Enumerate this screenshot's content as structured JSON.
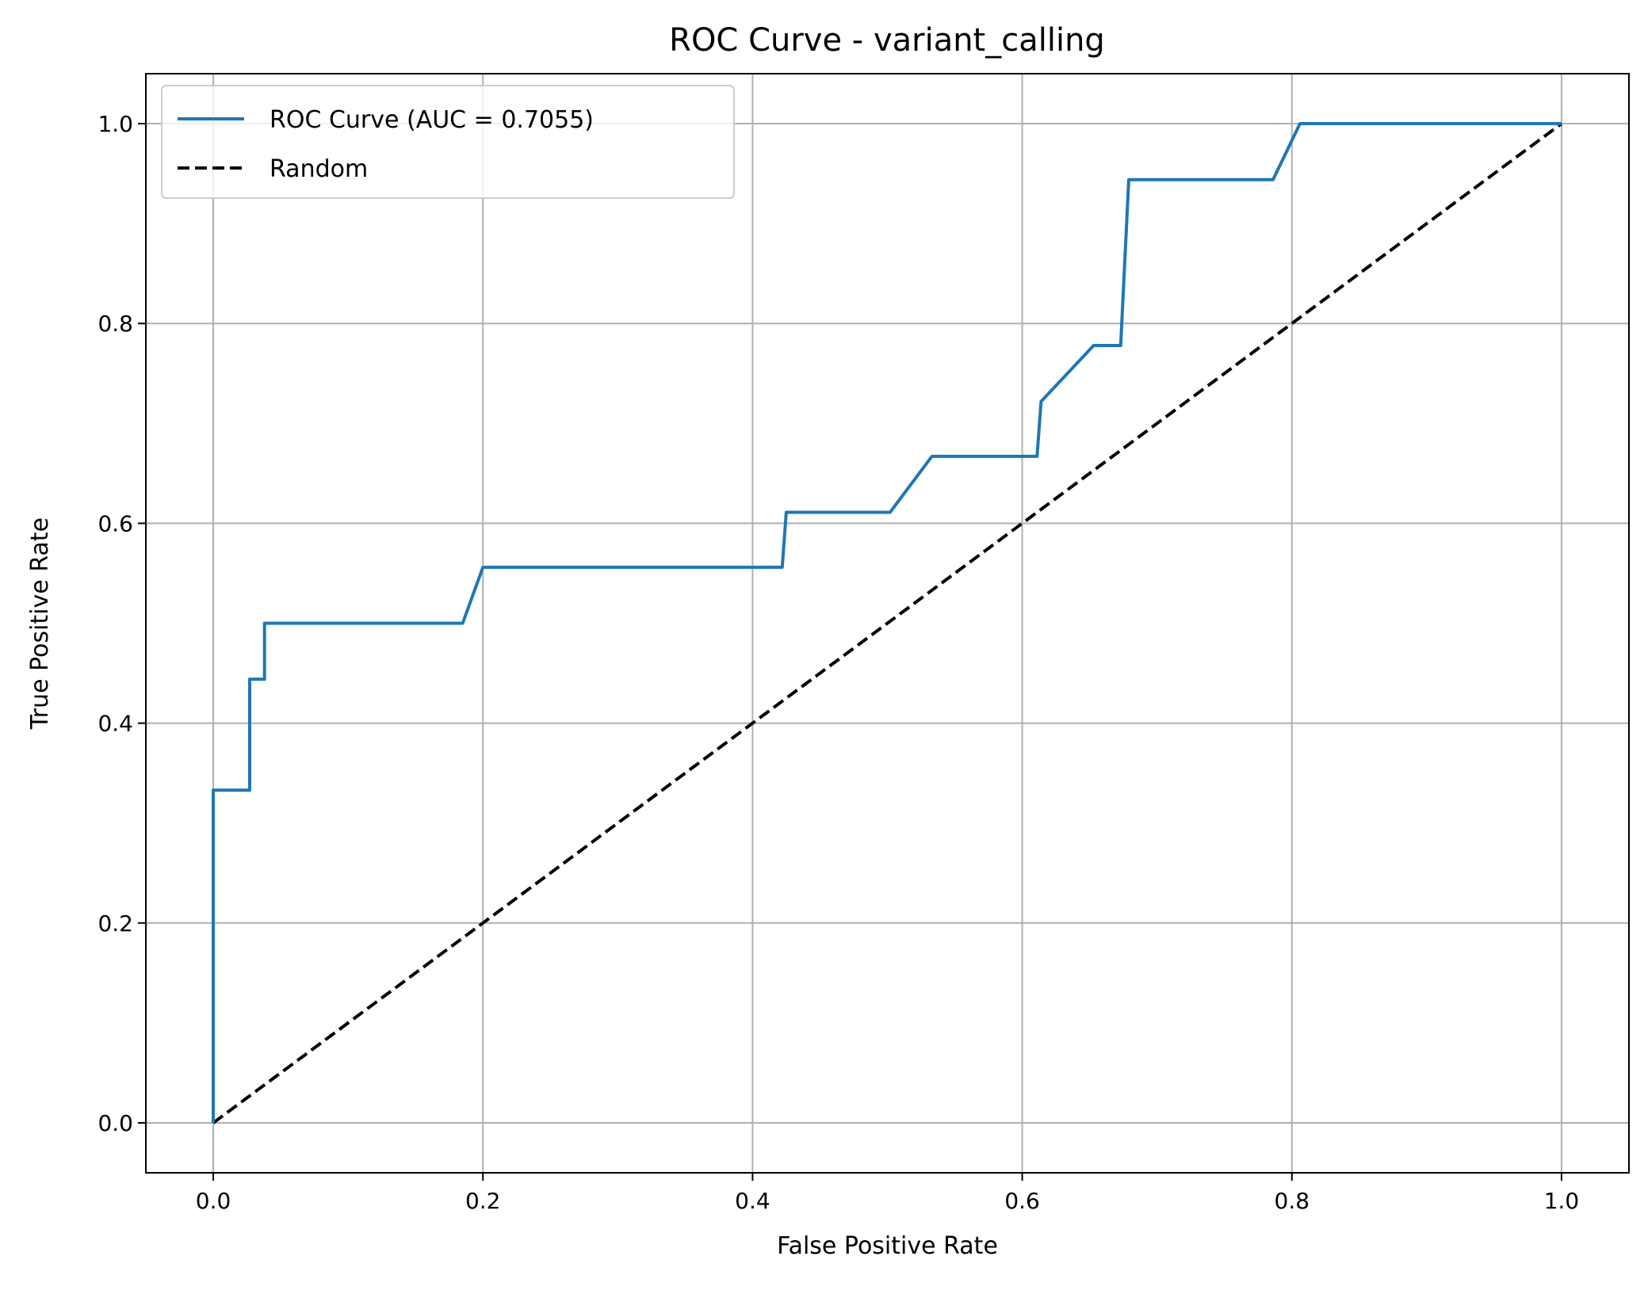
{
  "chart_data": {
    "type": "line",
    "title": "ROC Curve - variant_calling",
    "xlabel": "False Positive Rate",
    "ylabel": "True Positive Rate",
    "xlim": [
      -0.05,
      1.05
    ],
    "ylim": [
      -0.05,
      1.05
    ],
    "xticks": [
      "0.0",
      "0.2",
      "0.4",
      "0.6",
      "0.8",
      "1.0"
    ],
    "yticks": [
      "0.0",
      "0.2",
      "0.4",
      "0.6",
      "0.8",
      "1.0"
    ],
    "grid": true,
    "legend_position": "top-left",
    "series": [
      {
        "name": "ROC Curve (AUC = 0.7055)",
        "color": "#1f77b4",
        "style": "solid",
        "x": [
          0.0,
          0.0,
          0.027,
          0.027,
          0.038,
          0.038,
          0.185,
          0.2,
          0.422,
          0.425,
          0.502,
          0.533,
          0.611,
          0.614,
          0.653,
          0.673,
          0.679,
          0.786,
          0.806,
          1.0
        ],
        "y": [
          0.0,
          0.333,
          0.333,
          0.444,
          0.444,
          0.5,
          0.5,
          0.556,
          0.556,
          0.611,
          0.611,
          0.667,
          0.667,
          0.722,
          0.778,
          0.778,
          0.944,
          0.944,
          1.0,
          1.0
        ]
      },
      {
        "name": "Random",
        "color": "#000000",
        "style": "dashed",
        "x": [
          0.0,
          1.0
        ],
        "y": [
          0.0,
          1.0
        ]
      }
    ]
  }
}
